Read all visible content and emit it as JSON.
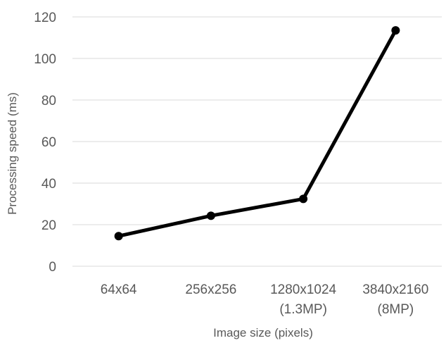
{
  "chart_data": {
    "type": "line",
    "title": "",
    "xlabel": "Image size (pixels)",
    "ylabel": "Processing speed (ms)",
    "categories": [
      [
        "64x64"
      ],
      [
        "256x256"
      ],
      [
        "1280x1024",
        "(1.3MP)"
      ],
      [
        "3840x2160",
        "(8MP)"
      ]
    ],
    "series": [
      {
        "values": [
          14.5,
          24.3,
          32.4,
          113.5
        ],
        "color": "#000000"
      }
    ],
    "ylim": [
      0,
      120
    ],
    "yticks": [
      "0",
      "20",
      "40",
      "60",
      "80",
      "100",
      "120"
    ],
    "grid": true,
    "legend": "none"
  }
}
